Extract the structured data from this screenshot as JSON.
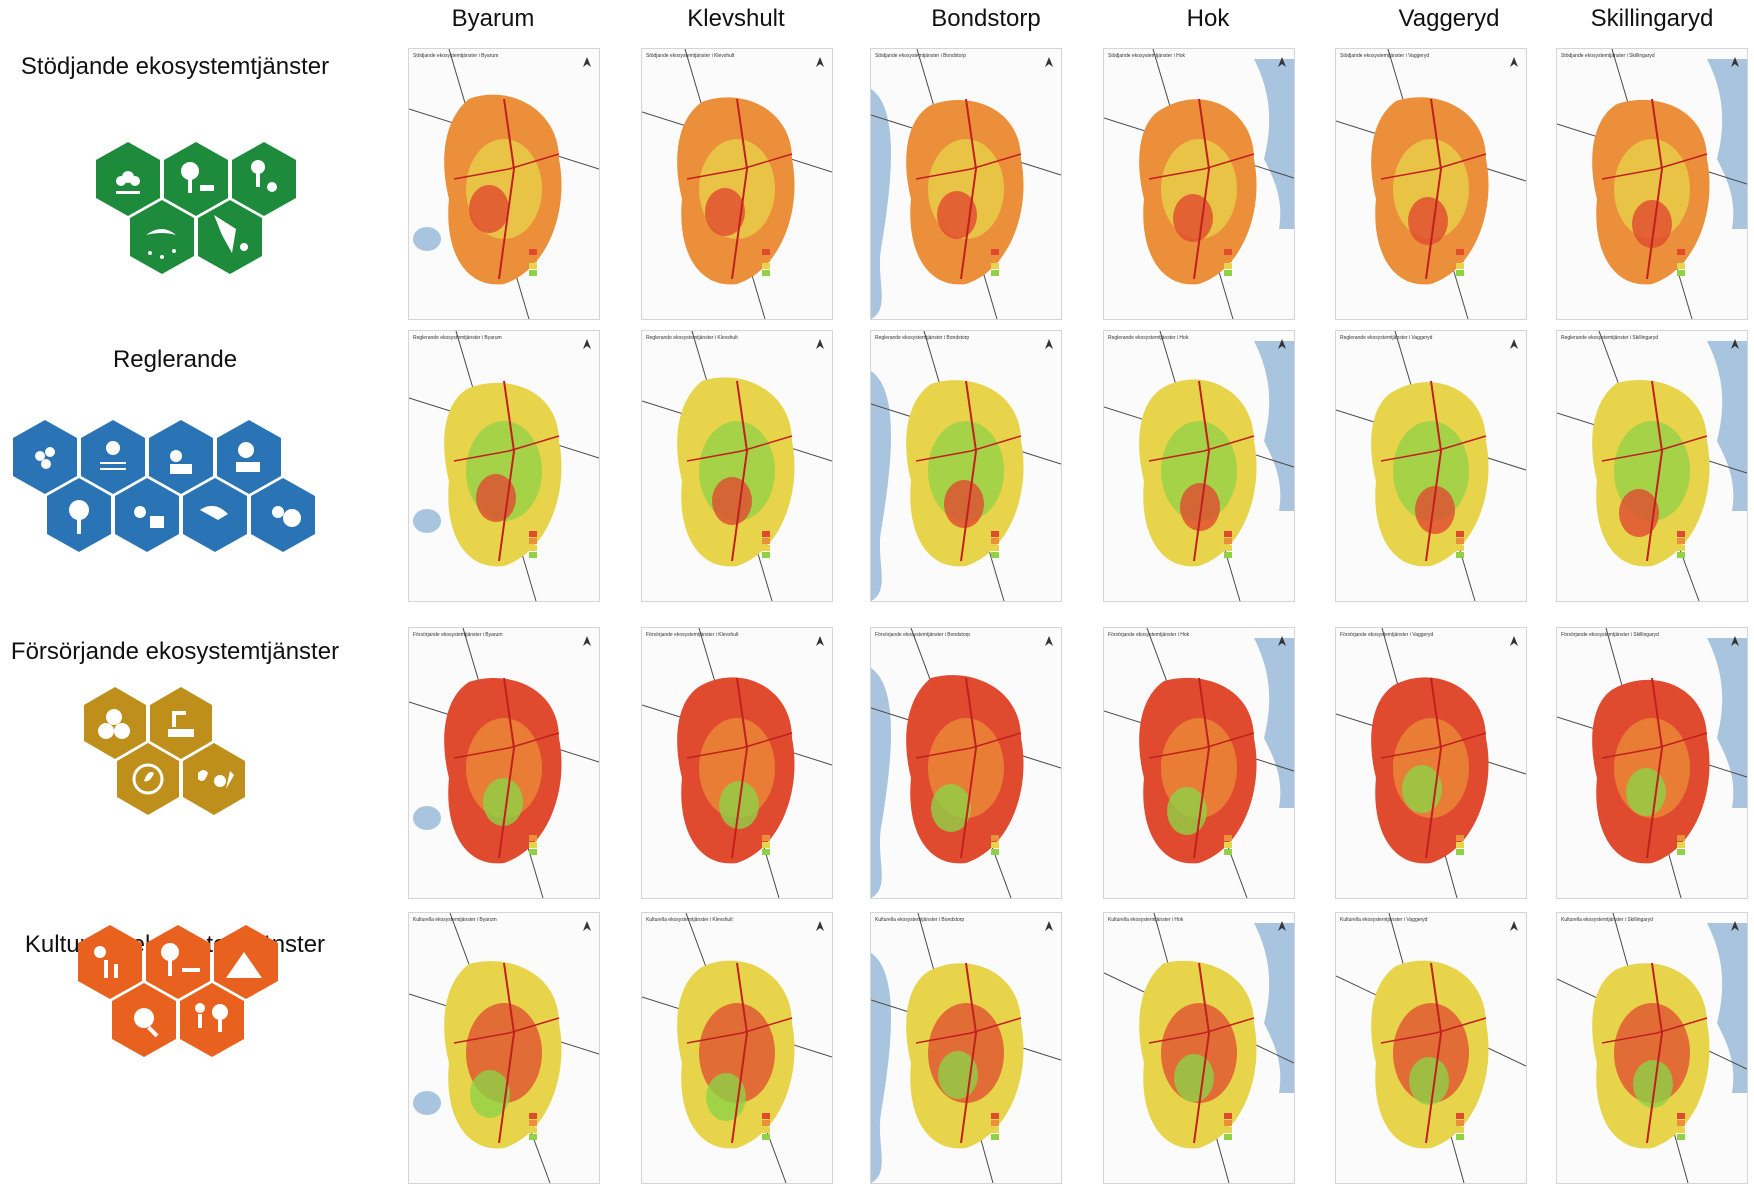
{
  "columns": [
    "Byarum",
    "Klevshult",
    "Bondstorp",
    "Hok",
    "Vaggeryd",
    "Skillingaryd"
  ],
  "rows": [
    {
      "label": "Stödjande ekosystemtjänster",
      "color": "#1e8a3b",
      "icon": "supporting-ecosystem-services-icon"
    },
    {
      "label": "Reglerande",
      "color": "#2a74b5",
      "icon": "regulating-ecosystem-services-icon"
    },
    {
      "label": "Försörjande ekosystemtjänster",
      "color": "#bf8f1b",
      "icon": "provisioning-ecosystem-services-icon"
    },
    {
      "label": "Kulturella ekosystemtjänster",
      "color": "#e8611f",
      "icon": "cultural-ecosystem-services-icon"
    }
  ],
  "map_titles": [
    [
      "Stödjande ekosystemtjänster i Byarum",
      "Stödjande ekosystemtjänster i Klevshult",
      "Stödjande ekosystemtjänster i Bondstorp",
      "Stödjande ekosystemtjänster i Hok",
      "Stödjande ekosystemtjänster i Vaggeryd",
      "Stödjande ekosystemtjänster i Skillingaryd"
    ],
    [
      "Reglerande ekosystemtjänster i Byarum",
      "Reglerande ekosystemtjänster i Klevshult",
      "Reglerande ekosystemtjänster i Bondstorp",
      "Reglerande ekosystemtjänster i Hok",
      "Reglerande ekosystemtjänster i Vaggeryd",
      "Reglerande ekosystemtjänster i Skillingaryd"
    ],
    [
      "Försörjande ekosystemtjänster i Byarum",
      "Försörjande ekosystemtjänster i Klevshult",
      "Försörjande ekosystemtjänster i Bondstorp",
      "Försörjande ekosystemtjänster i Hok",
      "Försörjande ekosystemtjänster i Vaggeryd",
      "Försörjande ekosystemtjänster i Skillingaryd"
    ],
    [
      "Kulturella ekosystemtjänster i Byarum",
      "Kulturella ekosystemtjänster i Klevshult",
      "Kulturella ekosystemtjänster i Bondstorp",
      "Kulturella ekosystemtjänster i Hok",
      "Kulturella ekosystemtjänster i Vaggeryd",
      "Kulturella ekosystemtjänster i Skillingaryd"
    ]
  ],
  "colors": {
    "water": "#a9c4df",
    "road": "#c21f1f",
    "base_road": "#4a4a4a",
    "scale_red": "#e04a2f",
    "scale_orange": "#ec8f3a",
    "scale_yellow": "#e8d44a",
    "scale_green": "#8fd246"
  }
}
